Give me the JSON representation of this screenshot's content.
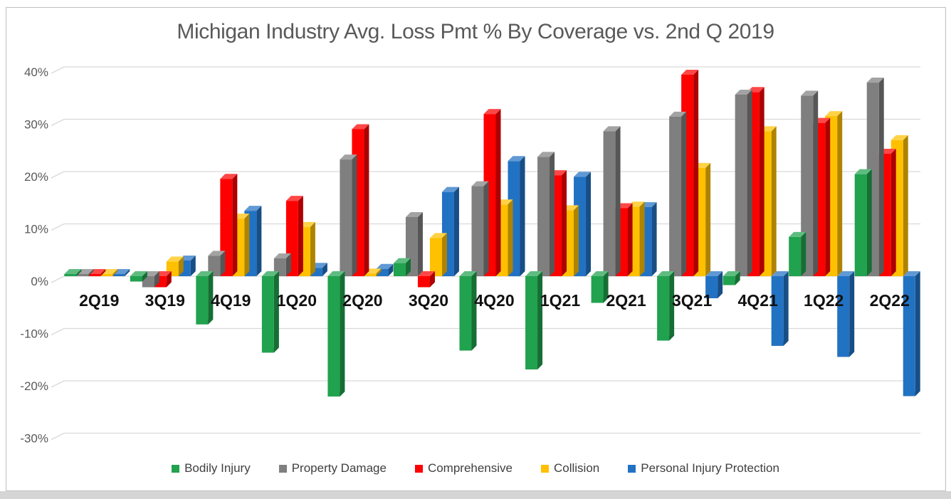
{
  "title": "Michigan Industry Avg. Loss Pmt % By Coverage vs. 2nd Q 2019",
  "chart_data": {
    "type": "bar",
    "style": "3d-clustered-column",
    "title": "Michigan Industry Avg. Loss Pmt % By Coverage vs. 2nd Q 2019",
    "categories": [
      "2Q19",
      "3Q19",
      "4Q19",
      "1Q20",
      "2Q20",
      "3Q20",
      "4Q20",
      "1Q21",
      "2Q21",
      "3Q21",
      "4Q21",
      "1Q22",
      "2Q22"
    ],
    "series": [
      {
        "name": "Bodily Injury",
        "color": "#21A24E",
        "values": [
          0.0,
          -1.0,
          -9.2,
          -14.6,
          -23.0,
          2.5,
          -14.2,
          -17.8,
          -5.1,
          -12.3,
          -1.7,
          7.5,
          19.5
        ]
      },
      {
        "name": "Property Damage",
        "color": "#7F7F7F",
        "values": [
          0.0,
          -2.1,
          3.9,
          3.4,
          22.3,
          11.3,
          17.2,
          22.8,
          27.7,
          30.5,
          34.7,
          34.5,
          37.0
        ]
      },
      {
        "name": "Comprehensive",
        "color": "#FE0000",
        "values": [
          0.0,
          -2.1,
          18.6,
          14.4,
          28.1,
          -2.1,
          31.0,
          19.3,
          13.0,
          38.5,
          35.2,
          29.3,
          23.4
        ]
      },
      {
        "name": "Collision",
        "color": "#FFC000",
        "values": [
          0.0,
          2.8,
          11.0,
          9.4,
          0.5,
          7.3,
          13.7,
          12.6,
          13.3,
          20.7,
          27.7,
          30.6,
          26.0
        ]
      },
      {
        "name": "Personal Injury Protection",
        "color": "#2272C3",
        "values": [
          0.0,
          3.0,
          12.5,
          1.6,
          1.4,
          16.1,
          22.0,
          19.0,
          13.2,
          -4.2,
          -13.3,
          -15.4,
          -22.9
        ]
      }
    ],
    "xlabel": "",
    "ylabel": "",
    "yticks": [
      40,
      30,
      20,
      10,
      0,
      -10,
      -20,
      -30
    ],
    "ytick_labels": [
      "40%",
      "30%",
      "20%",
      "10%",
      "0%",
      "-10%",
      "-20%",
      "-30%"
    ],
    "ylim": [
      -30,
      40
    ],
    "grid": true,
    "legend_position": "bottom",
    "gridline_color": "#d9d9d9",
    "axis_label_color": "#595959",
    "category_label_color": "#111111"
  }
}
